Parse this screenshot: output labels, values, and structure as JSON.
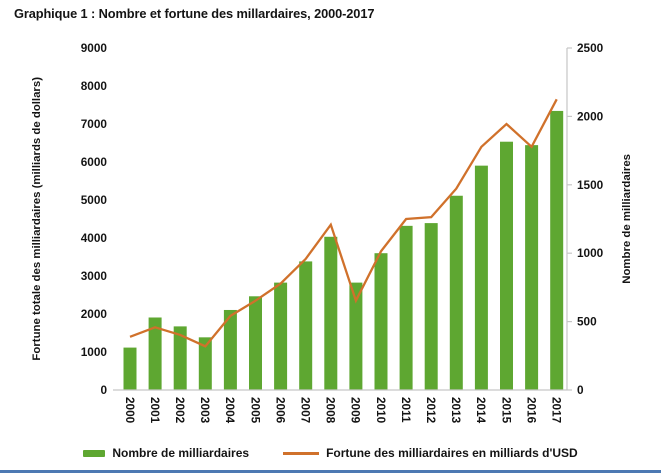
{
  "figure": {
    "title": "Graphique 1 : Nombre et fortune des millardaires, 2000-2017"
  },
  "colors": {
    "bar_green": "#5ea731",
    "line_orange": "#d0712b",
    "axis_gray": "#c6c6c6",
    "text": "#141414",
    "bottom_border_blue": "#4d79b3"
  },
  "chart_data": {
    "type": "combo-bar-line",
    "title": "Graphique 1 : Nombre et fortune des millardaires, 2000-2017",
    "categories": [
      "2000",
      "2001",
      "2002",
      "2003",
      "2004",
      "2005",
      "2006",
      "2007",
      "2008",
      "2009",
      "2010",
      "2011",
      "2012",
      "2013",
      "2014",
      "2015",
      "2016",
      "2017"
    ],
    "series": [
      {
        "name": "Nombre de milliardaires",
        "type": "bar",
        "axis": "right",
        "values": [
          310,
          530,
          465,
          385,
          585,
          685,
          785,
          940,
          1120,
          785,
          1000,
          1200,
          1220,
          1420,
          1640,
          1815,
          1790,
          2040
        ]
      },
      {
        "name": "Fortune des milliardaires en milliards d'USD",
        "type": "line",
        "axis": "left",
        "values": [
          1400,
          1650,
          1450,
          1150,
          1950,
          2350,
          2800,
          3450,
          4350,
          2350,
          3650,
          4500,
          4550,
          5300,
          6400,
          7000,
          6400,
          7650
        ]
      }
    ],
    "left_axis": {
      "label": "Fortune totale des milliardaires (milliards de dollars)",
      "min": 0,
      "max": 9000,
      "ticks": [
        0,
        1000,
        2000,
        3000,
        4000,
        5000,
        6000,
        7000,
        8000,
        9000
      ]
    },
    "right_axis": {
      "label": "Nombre de milliardaires",
      "min": 0,
      "max": 2500,
      "ticks": [
        0,
        500,
        1000,
        1500,
        2000,
        2500
      ]
    },
    "grid": false,
    "legend_position": "bottom"
  }
}
